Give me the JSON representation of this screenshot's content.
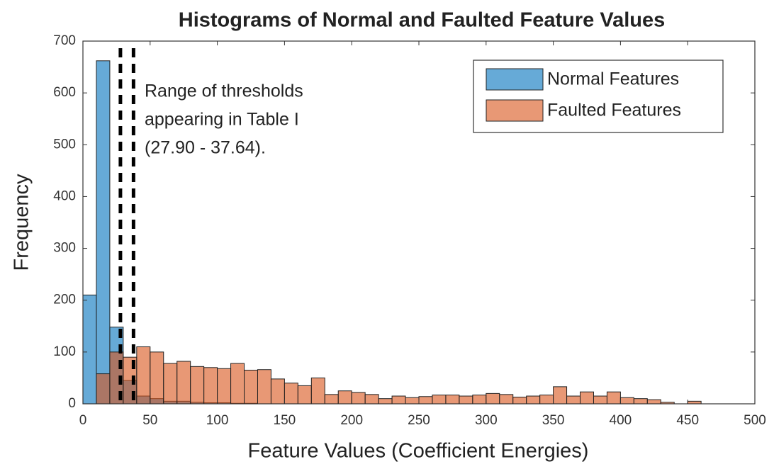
{
  "chart_data": {
    "type": "histogram",
    "title": "Histograms of Normal and Faulted Feature Values",
    "xlabel": "Feature Values (Coefficient Energies)",
    "ylabel": "Frequency",
    "annotation": [
      "Range of thresholds",
      "appearing in Table I",
      "(27.90 - 37.64)."
    ],
    "vlines": [
      27.9,
      37.64
    ],
    "bins": [
      0,
      10,
      20,
      30,
      40,
      50,
      60,
      70,
      80,
      90,
      100,
      110,
      120,
      130,
      140,
      150,
      160,
      170,
      180,
      190,
      200,
      210,
      220,
      230,
      240,
      250,
      260,
      270,
      280,
      290,
      300,
      310,
      320,
      330,
      340,
      350,
      360,
      370,
      380,
      390,
      400,
      410,
      420,
      430,
      440,
      450,
      460,
      470,
      480,
      490,
      500
    ],
    "series": [
      {
        "name": "Normal Features",
        "color": "#0072bd",
        "values": [
          210,
          662,
          148,
          45,
          15,
          10,
          5,
          5,
          3,
          2,
          2,
          1,
          1,
          0,
          0,
          0,
          0,
          0,
          0,
          0,
          0,
          0,
          0,
          0,
          0,
          0,
          0,
          0,
          0,
          0,
          0,
          0,
          0,
          0,
          0,
          0,
          0,
          0,
          0,
          0,
          0,
          0,
          0,
          0,
          0,
          0,
          0,
          0,
          0,
          0
        ]
      },
      {
        "name": "Faulted Features",
        "color": "#d95319",
        "values": [
          0,
          58,
          100,
          90,
          110,
          100,
          78,
          82,
          72,
          70,
          68,
          78,
          65,
          66,
          48,
          40,
          35,
          50,
          18,
          25,
          22,
          18,
          10,
          15,
          12,
          14,
          17,
          17,
          15,
          17,
          20,
          18,
          13,
          15,
          17,
          33,
          15,
          23,
          15,
          23,
          12,
          10,
          8,
          3,
          0,
          5,
          0,
          0,
          0,
          0
        ]
      }
    ],
    "opacity": 0.6,
    "xlim": [
      0,
      500
    ],
    "xticks": [
      0,
      50,
      100,
      150,
      200,
      250,
      300,
      350,
      400,
      450,
      500
    ],
    "ylim": [
      0,
      700
    ],
    "yticks": [
      0,
      100,
      200,
      300,
      400,
      500,
      600,
      700
    ],
    "legend": "upper right",
    "grid": false
  }
}
